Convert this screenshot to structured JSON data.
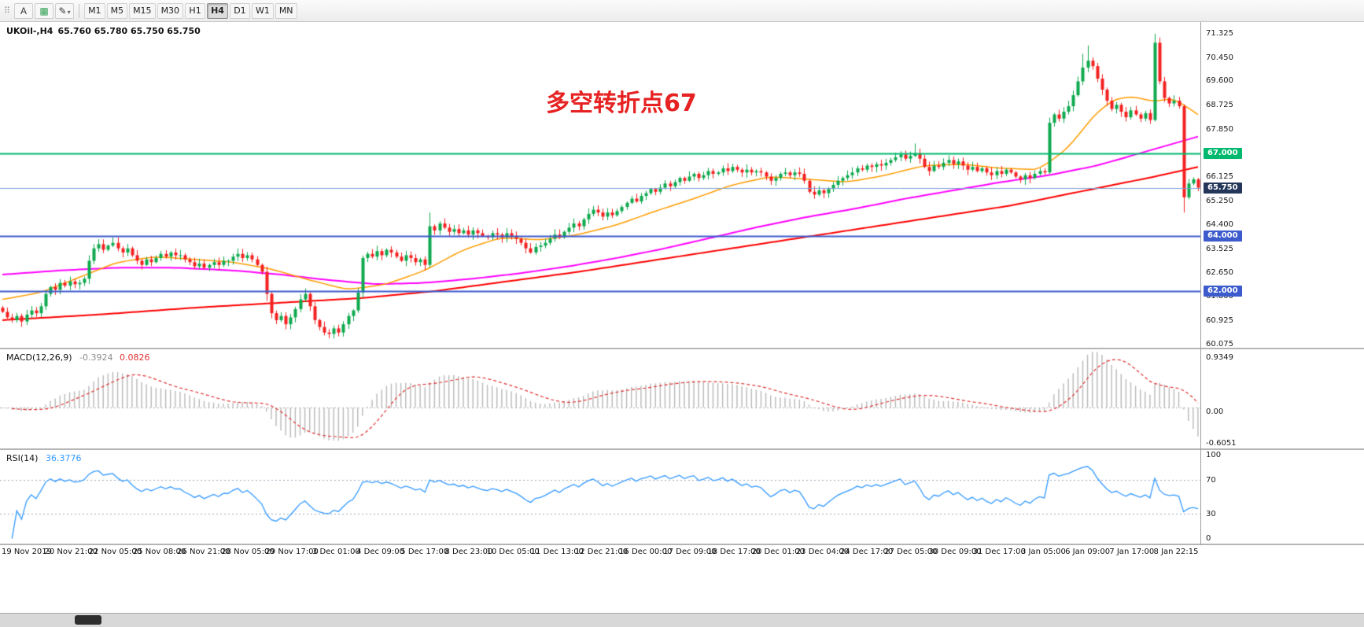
{
  "toolbar": {
    "tools": [
      {
        "id": "toolbar-drag-handle",
        "glyph": "⠿",
        "handle": true
      },
      {
        "id": "text-tool",
        "glyph": "A"
      },
      {
        "id": "objects-tool",
        "glyph": "▦",
        "color": "#2e9e4f"
      },
      {
        "id": "draw-tool",
        "glyph": "✎",
        "caret": "▾"
      }
    ],
    "timeframes": [
      "M1",
      "M5",
      "M15",
      "M30",
      "H1",
      "H4",
      "D1",
      "W1",
      "MN"
    ],
    "active_timeframe": "H4"
  },
  "chart_header": {
    "symbol_timeframe": "UKOil-,H4",
    "ohlc": "65.760 65.780 65.750 65.750"
  },
  "annotation": {
    "text": "多空转折点67",
    "color": "#e62222"
  },
  "chart_data": {
    "type": "candlestick",
    "symbol": "UKOil",
    "timeframe": "H4",
    "price_range": {
      "min": 59.95,
      "max": 71.75
    },
    "first_open": 61.4,
    "closes": [
      61.25,
      61.05,
      60.95,
      61.1,
      60.9,
      61.15,
      61.3,
      61.2,
      61.45,
      61.9,
      62.15,
      62.05,
      62.3,
      62.2,
      62.35,
      62.25,
      62.3,
      62.45,
      63.1,
      63.55,
      63.7,
      63.5,
      63.65,
      63.75,
      63.55,
      63.4,
      63.55,
      63.3,
      63.1,
      62.95,
      63.15,
      63.05,
      63.2,
      63.35,
      63.25,
      63.4,
      63.3,
      63.3,
      63.15,
      63.05,
      62.9,
      63.0,
      62.85,
      62.95,
      63.05,
      62.95,
      63.1,
      63.1,
      63.25,
      63.35,
      63.2,
      63.3,
      63.15,
      62.95,
      62.7,
      61.9,
      61.2,
      60.95,
      61.1,
      60.8,
      61.05,
      61.35,
      61.7,
      61.9,
      61.45,
      60.95,
      60.7,
      60.5,
      60.45,
      60.65,
      60.5,
      60.8,
      61.1,
      61.3,
      61.95,
      63.2,
      63.35,
      63.25,
      63.45,
      63.3,
      63.5,
      63.4,
      63.25,
      63.1,
      63.3,
      63.2,
      63.05,
      63.15,
      62.95,
      64.35,
      64.2,
      64.45,
      64.3,
      64.15,
      64.25,
      64.1,
      64.2,
      64.05,
      64.2,
      64.1,
      64.0,
      63.95,
      64.1,
      64.05,
      63.95,
      64.1,
      64.0,
      63.9,
      63.75,
      63.55,
      63.4,
      63.6,
      63.65,
      63.75,
      63.9,
      64.05,
      63.95,
      64.15,
      64.3,
      64.45,
      64.35,
      64.6,
      64.8,
      64.95,
      64.85,
      64.7,
      64.85,
      64.75,
      64.9,
      65.05,
      65.2,
      65.35,
      65.25,
      65.45,
      65.55,
      65.7,
      65.6,
      65.75,
      65.9,
      65.8,
      65.95,
      66.1,
      66.0,
      66.15,
      66.25,
      66.1,
      66.2,
      66.35,
      66.25,
      66.3,
      66.45,
      66.35,
      66.5,
      66.4,
      66.3,
      66.4,
      66.3,
      66.35,
      66.3,
      66.15,
      66.0,
      66.1,
      66.25,
      66.3,
      66.2,
      66.3,
      66.25,
      66.0,
      65.6,
      65.5,
      65.65,
      65.55,
      65.7,
      65.85,
      66.0,
      66.1,
      66.2,
      66.3,
      66.45,
      66.4,
      66.55,
      66.5,
      66.6,
      66.55,
      66.65,
      66.75,
      66.85,
      66.95,
      66.8,
      66.9,
      67.0,
      66.8,
      66.5,
      66.35,
      66.55,
      66.5,
      66.65,
      66.75,
      66.6,
      66.7,
      66.55,
      66.4,
      66.5,
      66.35,
      66.45,
      66.3,
      66.2,
      66.35,
      66.25,
      66.4,
      66.3,
      66.15,
      66.05,
      66.2,
      66.1,
      66.25,
      66.35,
      66.3,
      68.1,
      68.4,
      68.25,
      68.5,
      68.7,
      69.1,
      69.6,
      70.1,
      70.35,
      70.15,
      69.7,
      69.3,
      68.9,
      68.6,
      68.75,
      68.5,
      68.3,
      68.55,
      68.4,
      68.25,
      68.45,
      68.2,
      71.0,
      69.6,
      69.0,
      68.8,
      68.9,
      68.7,
      65.4,
      65.9,
      66.05,
      65.75
    ],
    "wick_overrides": {
      "23": {
        "high": 63.95
      },
      "55": {
        "low": 61.65
      },
      "67": {
        "low": 60.4
      },
      "89": {
        "high": 64.85
      },
      "190": {
        "high": 67.35
      },
      "218": {
        "low": 66.25
      },
      "225": {
        "high": 70.6
      },
      "226": {
        "high": 70.9
      },
      "240": {
        "high": 71.325,
        "low": 68.15
      },
      "246": {
        "low": 64.85
      },
      "249": {
        "high": 66.1
      }
    },
    "ma_lines": [
      {
        "name": "ma-slow",
        "color": "#ff0000",
        "width": 2,
        "points": [
          [
            0,
            60.95
          ],
          [
            20,
            61.15
          ],
          [
            40,
            61.4
          ],
          [
            60,
            61.6
          ],
          [
            75,
            61.75
          ],
          [
            90,
            62.0
          ],
          [
            105,
            62.35
          ],
          [
            120,
            62.7
          ],
          [
            135,
            63.1
          ],
          [
            150,
            63.5
          ],
          [
            165,
            63.9
          ],
          [
            180,
            64.3
          ],
          [
            195,
            64.7
          ],
          [
            210,
            65.1
          ],
          [
            220,
            65.45
          ],
          [
            230,
            65.8
          ],
          [
            240,
            66.15
          ],
          [
            249,
            66.5
          ]
        ]
      },
      {
        "name": "ma-medium",
        "color": "#ff00ff",
        "width": 2,
        "points": [
          [
            0,
            62.6
          ],
          [
            12,
            62.75
          ],
          [
            24,
            62.85
          ],
          [
            36,
            62.85
          ],
          [
            48,
            62.75
          ],
          [
            58,
            62.6
          ],
          [
            68,
            62.4
          ],
          [
            78,
            62.25
          ],
          [
            88,
            62.3
          ],
          [
            98,
            62.45
          ],
          [
            108,
            62.65
          ],
          [
            118,
            62.9
          ],
          [
            128,
            63.2
          ],
          [
            138,
            63.55
          ],
          [
            148,
            63.95
          ],
          [
            158,
            64.35
          ],
          [
            168,
            64.7
          ],
          [
            178,
            65.0
          ],
          [
            188,
            65.35
          ],
          [
            198,
            65.65
          ],
          [
            208,
            65.95
          ],
          [
            218,
            66.2
          ],
          [
            228,
            66.55
          ],
          [
            236,
            66.95
          ],
          [
            242,
            67.25
          ],
          [
            246,
            67.45
          ],
          [
            249,
            67.6
          ]
        ]
      },
      {
        "name": "ma-fast",
        "color": "#ff9c00",
        "width": 1.5,
        "points": [
          [
            0,
            61.7
          ],
          [
            8,
            61.95
          ],
          [
            16,
            62.5
          ],
          [
            24,
            63.05
          ],
          [
            32,
            63.25
          ],
          [
            40,
            63.15
          ],
          [
            48,
            63.05
          ],
          [
            56,
            62.8
          ],
          [
            64,
            62.4
          ],
          [
            72,
            62.05
          ],
          [
            80,
            62.25
          ],
          [
            88,
            62.75
          ],
          [
            96,
            63.5
          ],
          [
            104,
            63.95
          ],
          [
            112,
            63.85
          ],
          [
            120,
            64.05
          ],
          [
            128,
            64.4
          ],
          [
            136,
            64.9
          ],
          [
            144,
            65.35
          ],
          [
            152,
            65.85
          ],
          [
            160,
            66.15
          ],
          [
            168,
            66.05
          ],
          [
            176,
            65.95
          ],
          [
            184,
            66.2
          ],
          [
            192,
            66.55
          ],
          [
            200,
            66.6
          ],
          [
            208,
            66.45
          ],
          [
            216,
            66.4
          ],
          [
            222,
            67.2
          ],
          [
            228,
            68.5
          ],
          [
            232,
            69.0
          ],
          [
            236,
            69.05
          ],
          [
            240,
            68.85
          ],
          [
            244,
            69.0
          ],
          [
            249,
            68.4
          ]
        ]
      }
    ],
    "hlines": [
      {
        "price": 67.0,
        "label": "67.000",
        "color": "#00b96e",
        "width": 2,
        "badge_color": "#00b96e"
      },
      {
        "price": 65.75,
        "label": "65.750",
        "color": "#7aa0d4",
        "width": 1,
        "badge_color": "#24365a"
      },
      {
        "price": 64.0,
        "label": "64.000",
        "color": "#3c5bcc",
        "width": 2,
        "badge_color": "#3c5bcc"
      },
      {
        "price": 62.0,
        "label": "62.000",
        "color": "#3c5bcc",
        "width": 2,
        "badge_color": "#3c5bcc"
      }
    ],
    "price_ticks": [
      "71.325",
      "70.450",
      "69.600",
      "68.725",
      "67.850",
      "66.125",
      "65.250",
      "64.400",
      "63.525",
      "62.650",
      "61.800",
      "60.925",
      "60.075"
    ],
    "time_labels": [
      "19 Nov 2019",
      "20 Nov 21:00",
      "22 Nov 05:00",
      "25 Nov 08:00",
      "26 Nov 21:00",
      "28 Nov 05:00",
      "29 Nov 17:00",
      "3 Dec 01:00",
      "4 Dec 09:00",
      "5 Dec 17:00",
      "8 Dec 23:00",
      "10 Dec 05:00",
      "11 Dec 13:00",
      "12 Dec 21:00",
      "16 Dec 00:00",
      "17 Dec 09:00",
      "18 Dec 17:00",
      "20 Dec 01:00",
      "23 Dec 04:00",
      "24 Dec 17:00",
      "27 Dec 05:00",
      "30 Dec 09:00",
      "31 Dec 17:00",
      "3 Jan 05:00",
      "6 Jan 09:00",
      "7 Jan 17:00",
      "8 Jan 22:15"
    ],
    "macd": {
      "label": "MACD(12,26,9)",
      "fast": 12,
      "slow": 26,
      "signal": 9,
      "value_main": "-0.3924",
      "value_signal": "0.0826",
      "ticks": [
        {
          "label": "0.9349",
          "value": 0.9349
        },
        {
          "label": "0.00",
          "value": 0
        },
        {
          "label": "-0.6051",
          "value": -0.6051
        }
      ],
      "range": {
        "min": -0.7,
        "max": 1.0
      }
    },
    "rsi": {
      "label": "RSI(14)",
      "period": 14,
      "value": "36.3776",
      "ticks": [
        {
          "label": "100",
          "value": 100
        },
        {
          "label": "70",
          "value": 70
        },
        {
          "label": "30",
          "value": 30
        },
        {
          "label": "0",
          "value": 0
        }
      ],
      "levels": [
        70,
        30
      ],
      "range": {
        "min": -6,
        "max": 106
      }
    },
    "colors": {
      "up": "#0ea94e",
      "down": "#f42020",
      "macd_hist": "#b8b8b8",
      "macd_signal": "#e03030",
      "rsi_line": "#3399ff",
      "grid_dotted": "#b0b0b0",
      "rsi_level": "#9aa6b8"
    }
  }
}
